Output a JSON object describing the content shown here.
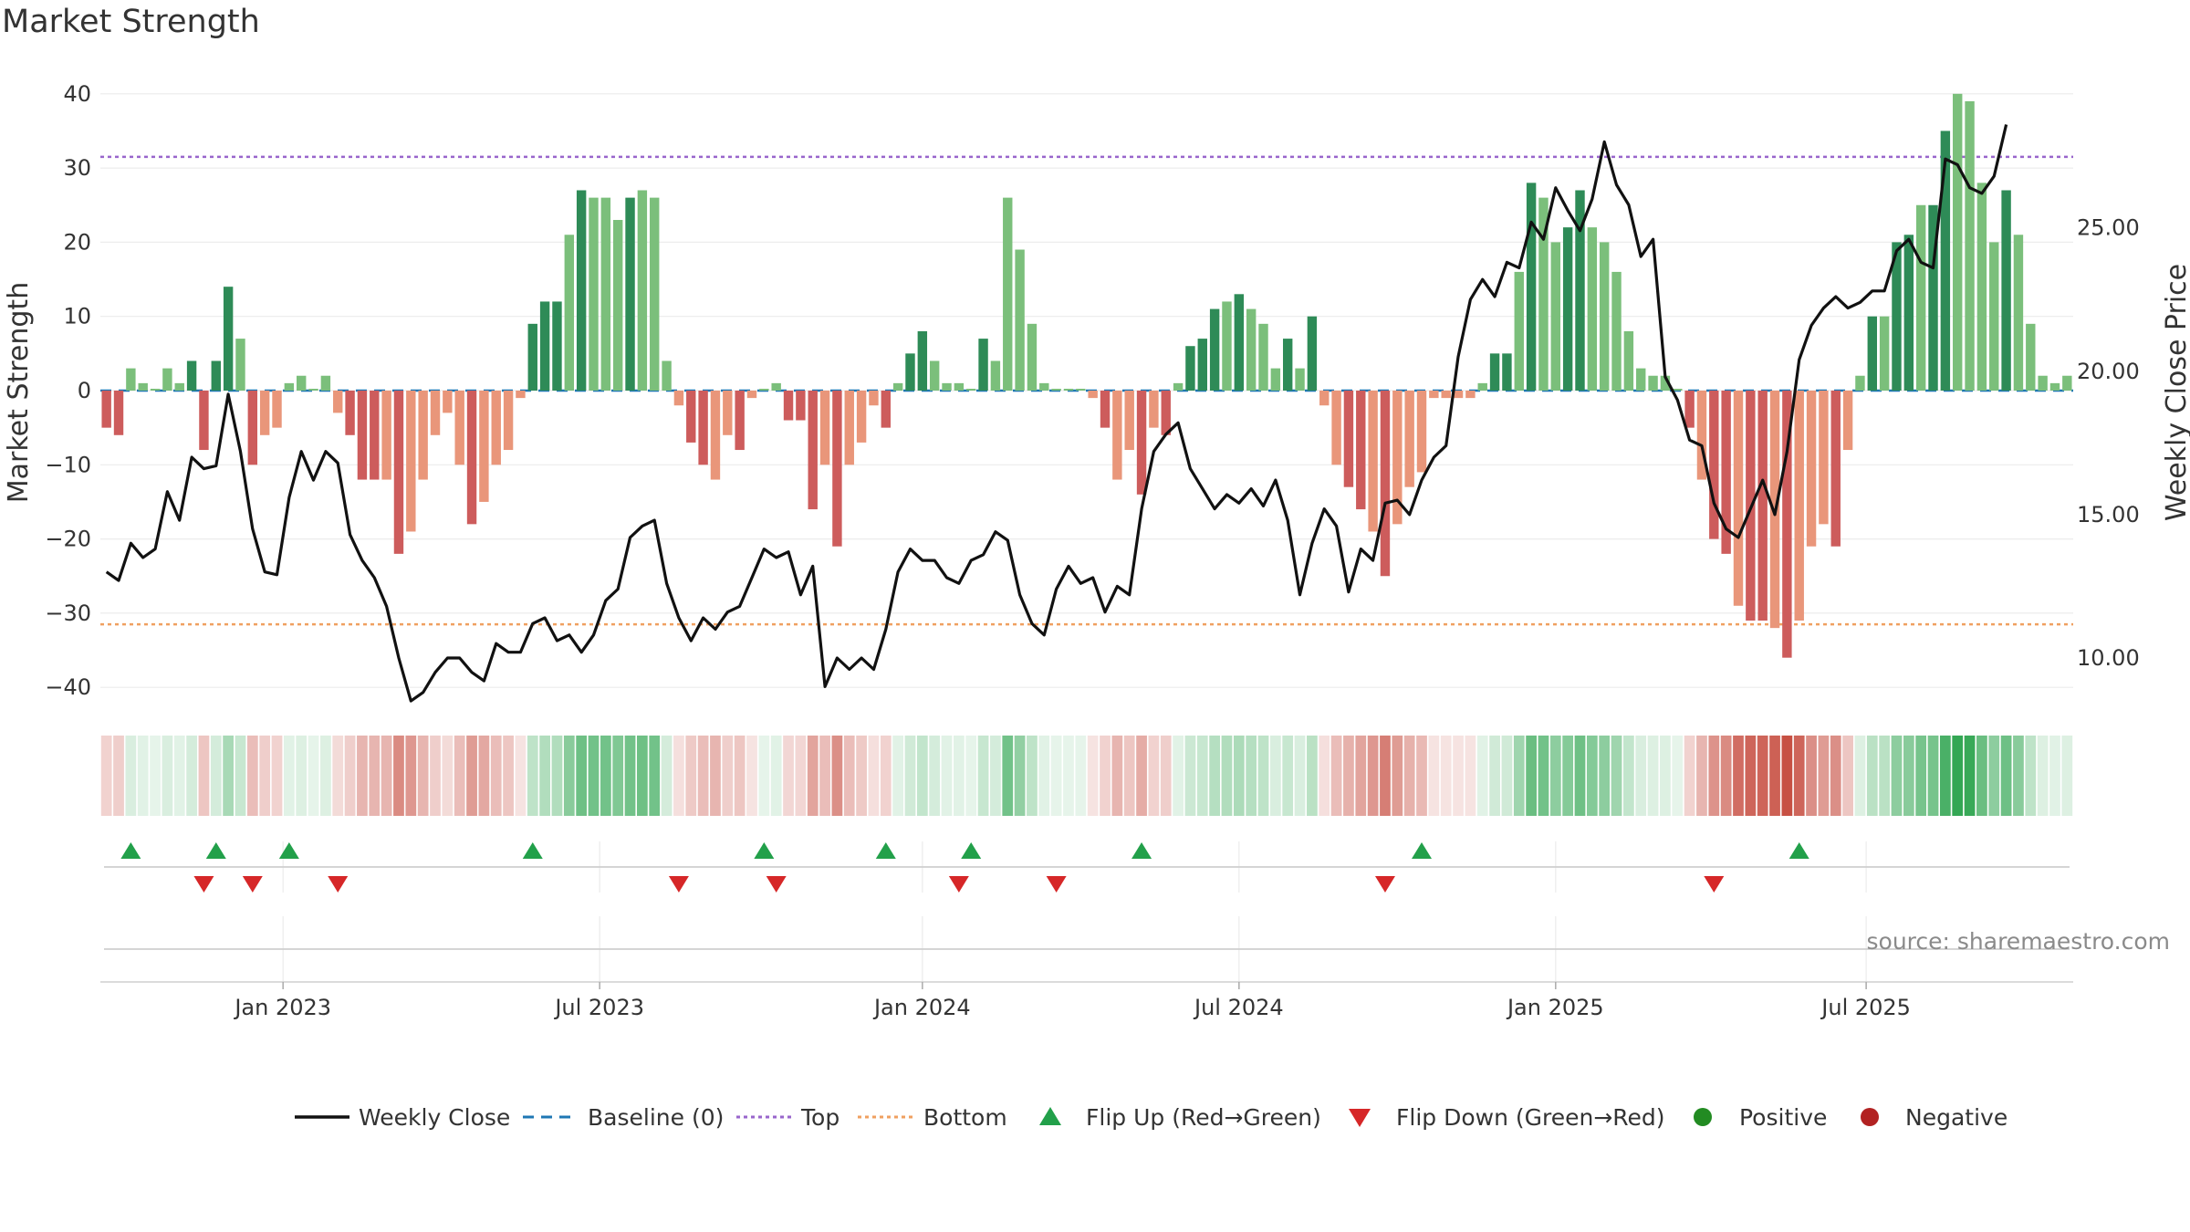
{
  "chart_data": {
    "title": "Market Strength",
    "type": "bar",
    "y_left_label": "Market Strength",
    "y_right_label": "Weekly Close Price",
    "y_left_ticks": [
      40,
      30,
      20,
      10,
      0,
      -10,
      -20,
      -30,
      -40
    ],
    "y_left_tick_labels": [
      "40",
      "30",
      "20",
      "10",
      "0",
      "−10",
      "−20",
      "−30",
      "−40"
    ],
    "y_left_range": [
      -45,
      43
    ],
    "y_right_ticks": [
      "25.00",
      "20.00",
      "15.00",
      "10.00"
    ],
    "y_right_range": [
      7.68,
      30.45
    ],
    "x_ticks": [
      "Jan 2023",
      "Jul 2023",
      "Jan 2024",
      "Jul 2024",
      "Jan 2025",
      "Jul 2025"
    ],
    "x_tick_weeks": [
      15,
      41,
      67.5,
      93.5,
      119.5,
      145
    ],
    "top_line": 31.5,
    "bottom_line": -31.5,
    "baseline": 0,
    "strength": [
      -5,
      -6,
      3,
      1,
      0,
      3,
      1,
      4,
      -8,
      4,
      14,
      7,
      -10,
      -6,
      -5,
      1,
      2,
      0,
      2,
      -3,
      -6,
      -12,
      -12,
      -12,
      -22,
      -19,
      -12,
      -6,
      -3,
      -10,
      -18,
      -15,
      -10,
      -8,
      -1,
      9,
      12,
      12,
      21,
      27,
      26,
      26,
      23,
      26,
      27,
      26,
      4,
      -2,
      -7,
      -10,
      -12,
      -6,
      -8,
      -1,
      0,
      1,
      -4,
      -4,
      -16,
      -10,
      -21,
      -10,
      -7,
      -2,
      -5,
      1,
      5,
      8,
      4,
      1,
      1,
      0,
      7,
      4,
      26,
      19,
      9,
      1,
      0,
      0,
      0,
      -1,
      -5,
      -12,
      -8,
      -14,
      -5,
      -6,
      1,
      6,
      7,
      11,
      12,
      13,
      11,
      9,
      3,
      7,
      3,
      10,
      -2,
      -10,
      -13,
      -16,
      -19,
      -25,
      -18,
      -13,
      -11,
      -1,
      -1,
      -1,
      -1,
      1,
      5,
      5,
      16,
      28,
      26,
      20,
      22,
      27,
      22,
      20,
      16,
      8,
      3,
      2,
      2,
      0,
      -5,
      -12,
      -20,
      -22,
      -29,
      -31,
      -31,
      -32,
      -36,
      -31,
      -21,
      -18,
      -21,
      -8,
      2,
      10,
      10,
      20,
      21,
      25,
      25,
      35,
      40,
      39,
      28,
      20,
      27,
      21,
      9,
      2,
      1,
      2
    ],
    "weekly_close": [
      13.0,
      12.7,
      14.0,
      13.5,
      13.8,
      15.8,
      14.8,
      17.0,
      16.6,
      16.7,
      19.2,
      17.2,
      14.5,
      13.0,
      12.9,
      15.6,
      17.2,
      16.2,
      17.2,
      16.8,
      14.3,
      13.4,
      12.8,
      11.8,
      10.0,
      8.5,
      8.8,
      9.5,
      10.0,
      10.0,
      9.5,
      9.2,
      10.5,
      10.2,
      10.2,
      11.2,
      11.4,
      10.6,
      10.8,
      10.2,
      10.8,
      12.0,
      12.4,
      14.2,
      14.6,
      14.8,
      12.6,
      11.4,
      10.6,
      11.4,
      11.0,
      11.6,
      11.8,
      12.8,
      13.8,
      13.5,
      13.7,
      12.2,
      13.2,
      9.0,
      10.0,
      9.6,
      10.0,
      9.6,
      11.0,
      13.0,
      13.8,
      13.4,
      13.4,
      12.8,
      12.6,
      13.4,
      13.6,
      14.4,
      14.1,
      12.2,
      11.2,
      10.8,
      12.4,
      13.2,
      12.6,
      12.8,
      11.6,
      12.5,
      12.2,
      15.2,
      17.2,
      17.8,
      18.2,
      16.6,
      15.9,
      15.2,
      15.7,
      15.4,
      15.9,
      15.3,
      16.2,
      14.8,
      12.2,
      14.0,
      15.2,
      14.6,
      12.3,
      13.8,
      13.4,
      15.4,
      15.5,
      15.0,
      16.2,
      17.0,
      17.4,
      20.5,
      22.5,
      23.2,
      22.6,
      23.8,
      23.6,
      25.2,
      24.6,
      26.4,
      25.6,
      24.9,
      26.0,
      28.0,
      26.5,
      25.8,
      24.0,
      24.6,
      19.8,
      19.0,
      17.6,
      17.4,
      15.4,
      14.5,
      14.2,
      15.2,
      16.2,
      15.0,
      17.2,
      20.4,
      21.6,
      22.2,
      22.6,
      22.2,
      22.4,
      22.8,
      22.8,
      24.2,
      24.6,
      23.8,
      23.6,
      27.4,
      27.2,
      26.4,
      26.2,
      26.8,
      28.6
    ],
    "flip_up_weeks": [
      2,
      9,
      15,
      35,
      54,
      64,
      71,
      85,
      108,
      139
    ],
    "flip_down_weeks": [
      8,
      12,
      19,
      47,
      55,
      70,
      78,
      105,
      132
    ],
    "legend": [
      "Weekly Close",
      "Baseline (0)",
      "Top",
      "Bottom",
      "Flip Up (Red→Green)",
      "Flip Down (Green→Red)",
      "Positive",
      "Negative"
    ],
    "source": "source: sharemaestro.com",
    "colors": {
      "pos_dark": "#2e8b57",
      "pos_light": "#7bbf7b",
      "neg_dark": "#cd5c5c",
      "neg_light": "#e9967a",
      "line": "#111111",
      "top": "#9966cc",
      "bottom": "#f0a060",
      "baseline": "#1f77b4",
      "flip_up": "#22a04a",
      "flip_down": "#d62728",
      "positive_dot": "#228b22",
      "negative_dot": "#b22222",
      "grid": "#ececec"
    }
  }
}
